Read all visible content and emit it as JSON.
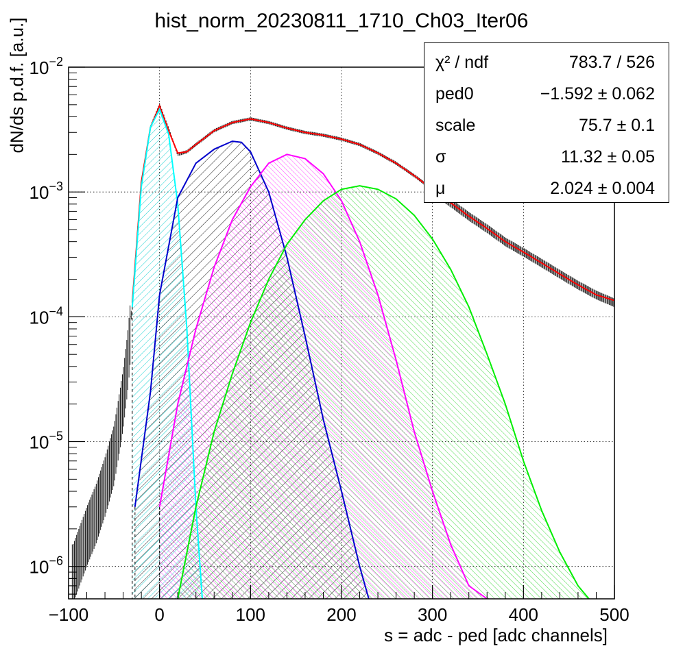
{
  "chart_data": {
    "type": "line",
    "title": "hist_norm_20230811_1710_Ch03_Iter06",
    "xlabel": "s = adc - ped [adc channels]",
    "ylabel": "dN/ds p.d.f. [a.u.]",
    "xlim": [
      -100,
      500
    ],
    "ylim": [
      5.5e-07,
      0.01
    ],
    "y_scale": "log",
    "grid": true,
    "x_ticks": [
      "−100",
      "0",
      "100",
      "200",
      "300",
      "400",
      "500"
    ],
    "y_ticks": [
      {
        "base": "10",
        "exp": "−2"
      },
      {
        "base": "10",
        "exp": "−3"
      },
      {
        "base": "10",
        "exp": "−4"
      },
      {
        "base": "10",
        "exp": "−5"
      },
      {
        "base": "10",
        "exp": "−6"
      }
    ],
    "series": [
      {
        "color": "#000000",
        "style": "data",
        "x": [
          -95,
          -80,
          -70,
          -60,
          -50,
          -45,
          -40,
          -35,
          -30,
          -20,
          -10,
          0,
          10,
          20,
          30,
          40,
          60,
          80,
          100,
          120,
          140,
          160,
          180,
          200,
          220,
          240,
          260,
          280,
          300,
          320,
          340,
          360,
          380,
          400,
          420,
          440,
          460,
          480,
          500
        ],
        "y": [
          1e-06,
          2e-06,
          3e-06,
          5e-06,
          9e-06,
          1.5e-05,
          2.5e-05,
          5e-05,
          0.00013,
          0.0012,
          0.0033,
          0.005,
          0.0032,
          0.002,
          0.0021,
          0.0024,
          0.0031,
          0.0036,
          0.00385,
          0.0036,
          0.00325,
          0.003,
          0.00285,
          0.00265,
          0.0024,
          0.00205,
          0.0017,
          0.00135,
          0.00105,
          0.00082,
          0.00064,
          0.00051,
          0.0004,
          0.00033,
          0.00027,
          0.00022,
          0.00018,
          0.00015,
          0.00013
        ]
      },
      {
        "color": "#ff0000",
        "style": "fit-total",
        "x": [
          -30,
          -20,
          -10,
          0,
          10,
          20,
          30,
          40,
          60,
          80,
          100,
          120,
          140,
          160,
          180,
          200,
          220,
          240,
          260,
          280,
          300,
          320,
          340,
          360,
          380,
          400,
          420,
          440,
          460,
          480,
          500
        ],
        "y": [
          0.00013,
          0.0012,
          0.0033,
          0.0049,
          0.0031,
          0.00205,
          0.0021,
          0.0024,
          0.0031,
          0.0036,
          0.00385,
          0.0036,
          0.00325,
          0.003,
          0.00285,
          0.00265,
          0.0024,
          0.00205,
          0.0017,
          0.00135,
          0.00105,
          0.00082,
          0.00064,
          0.00051,
          0.0004,
          0.00033,
          0.00027,
          0.00022,
          0.00018,
          0.00015,
          0.000135
        ]
      },
      {
        "color": "#00ffff",
        "style": "component",
        "x": [
          -30,
          -20,
          -10,
          0,
          10,
          20,
          30,
          40,
          47
        ],
        "y": [
          0.00012,
          0.0011,
          0.0033,
          0.0046,
          0.0029,
          0.0008,
          8e-05,
          3e-06,
          5.5e-07
        ]
      },
      {
        "color": "#0000cc",
        "style": "component",
        "x": [
          -27,
          -10,
          0,
          20,
          40,
          60,
          80,
          90,
          100,
          120,
          140,
          160,
          180,
          200,
          220,
          230
        ],
        "y": [
          3e-06,
          2.5e-05,
          0.00015,
          0.0009,
          0.0017,
          0.0022,
          0.00255,
          0.0025,
          0.0021,
          0.001,
          0.0003,
          7e-05,
          1.5e-05,
          4e-06,
          1e-06,
          5.5e-07
        ]
      },
      {
        "color": "#ff00ff",
        "style": "component",
        "x": [
          0,
          20,
          40,
          60,
          80,
          100,
          120,
          140,
          160,
          180,
          200,
          220,
          240,
          260,
          280,
          300,
          320,
          340,
          360
        ],
        "y": [
          3e-06,
          2e-05,
          8e-05,
          0.00025,
          0.0006,
          0.0011,
          0.0017,
          0.002,
          0.00185,
          0.0014,
          0.00085,
          0.0004,
          0.00015,
          4.5e-05,
          1.2e-05,
          4e-06,
          1.5e-06,
          7e-07,
          5.5e-07
        ]
      },
      {
        "color": "#00ee00",
        "style": "component",
        "x": [
          20,
          40,
          60,
          80,
          100,
          120,
          140,
          160,
          180,
          200,
          220,
          240,
          260,
          280,
          300,
          320,
          340,
          360,
          380,
          400,
          420,
          440,
          460,
          472
        ],
        "y": [
          5.5e-07,
          3e-06,
          1.2e-05,
          3.5e-05,
          9e-05,
          0.0002,
          0.00038,
          0.0006,
          0.00085,
          0.00105,
          0.00112,
          0.00105,
          0.00088,
          0.00065,
          0.00042,
          0.00024,
          0.00012,
          5e-05,
          2e-05,
          7e-06,
          2.8e-06,
          1.3e-06,
          7e-07,
          5.5e-07
        ]
      }
    ]
  },
  "stats_box": {
    "rows": [
      {
        "label": "χ² / ndf",
        "value": "783.7 / 526"
      },
      {
        "label": "ped0",
        "value": "−1.592 ± 0.062"
      },
      {
        "label": "scale",
        "value": "75.7 ± 0.1"
      },
      {
        "label": "σ",
        "value": "11.32 ± 0.05"
      },
      {
        "label": "μ",
        "value": "2.024 ± 0.004"
      }
    ]
  }
}
